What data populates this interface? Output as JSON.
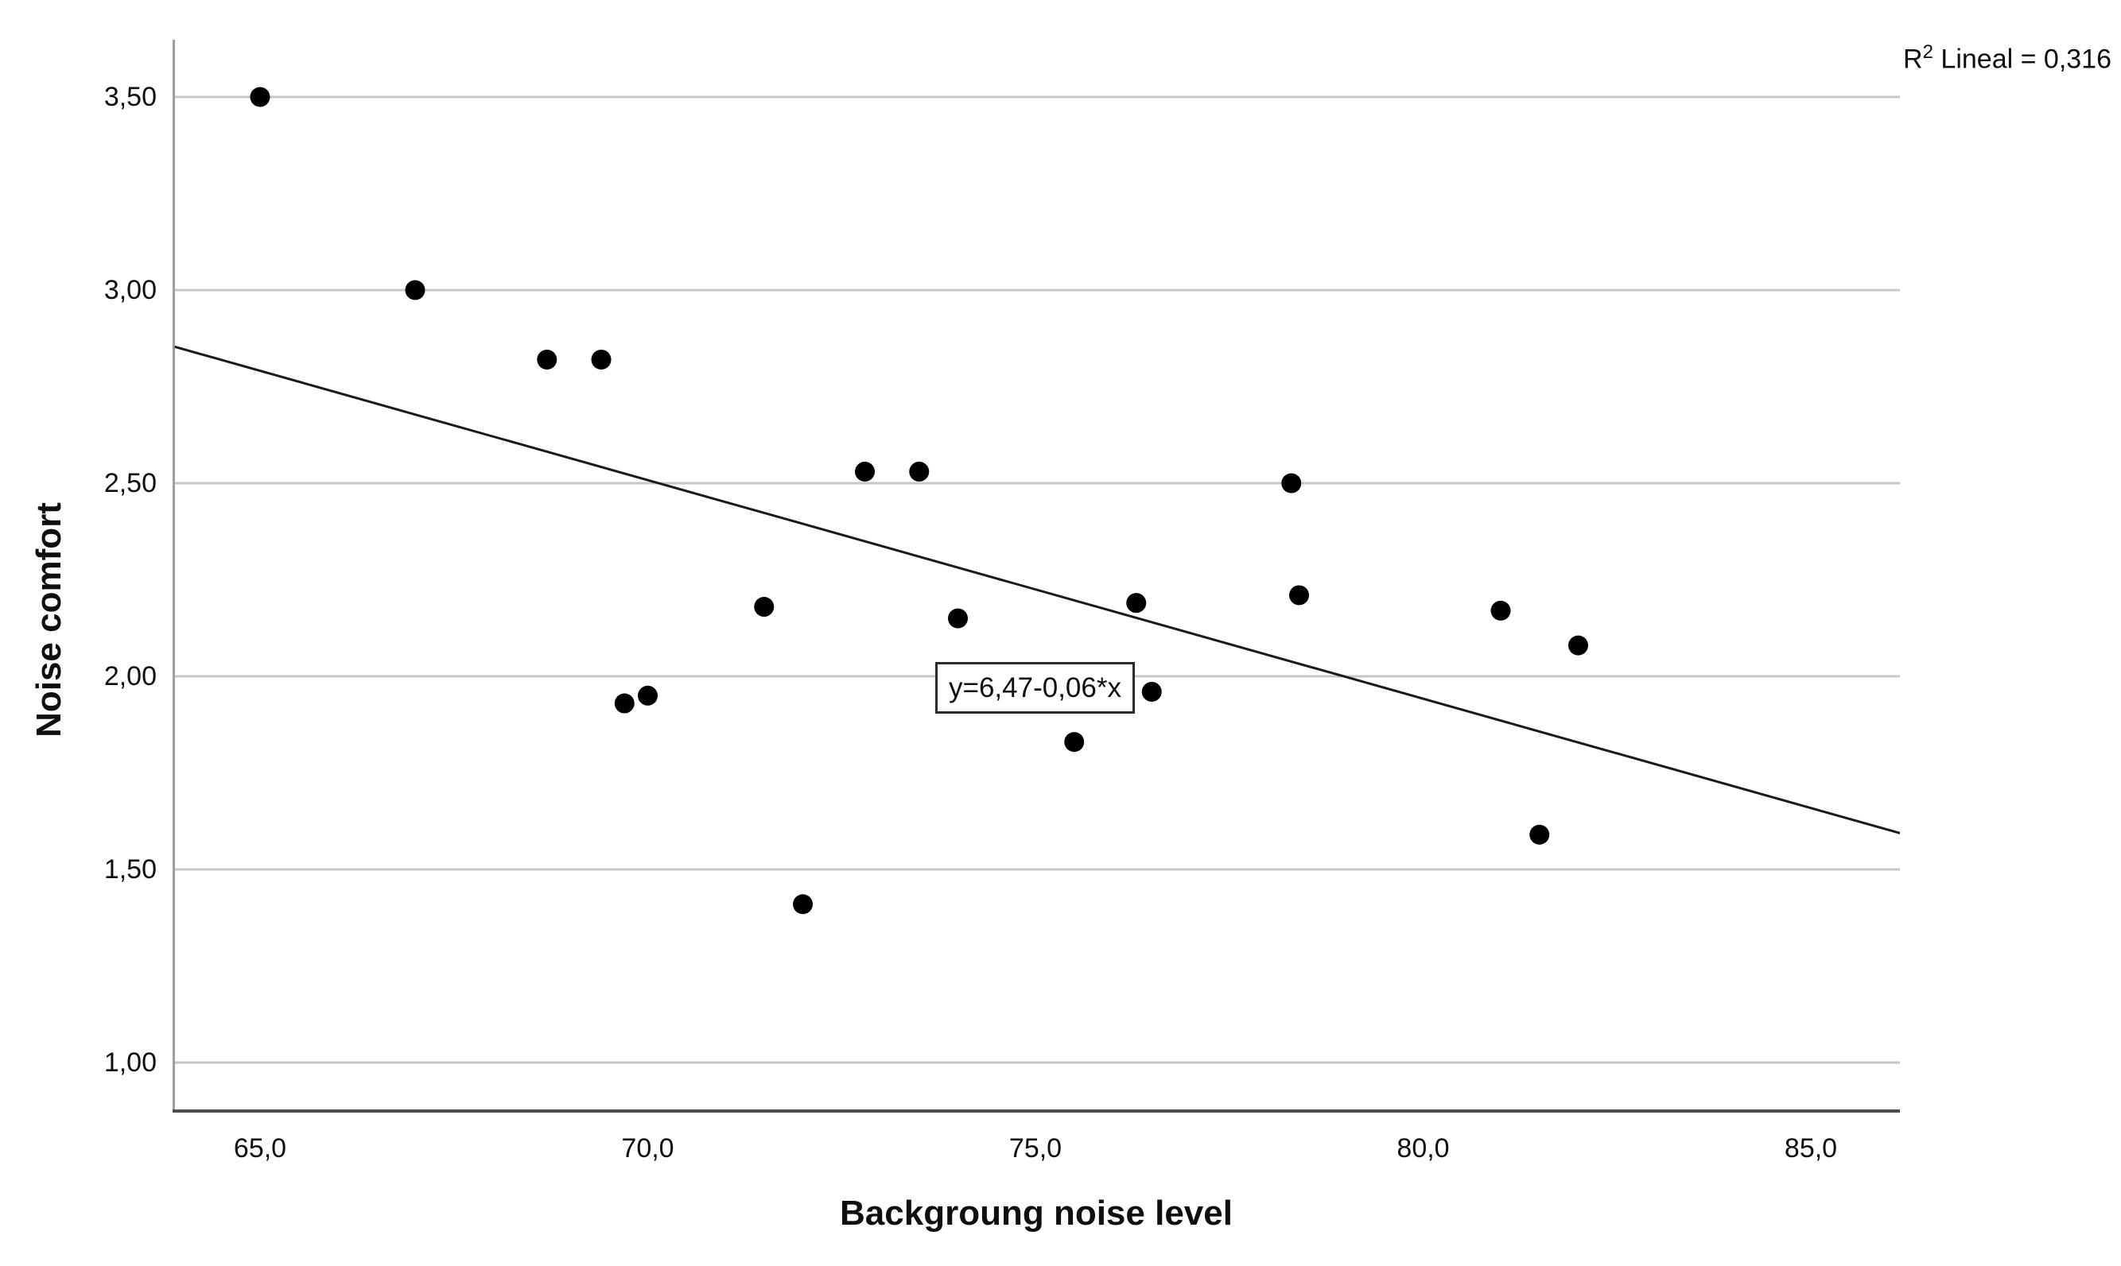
{
  "figure": {
    "r2_label": {
      "prefix": "R",
      "sup": "2",
      "rest": " Lineal = 0,316"
    },
    "annotation_equation": "y=6,47-0,06*x",
    "x_axis_title": "Backgroung noise level",
    "y_axis_title": "Noise comfort"
  },
  "colors": {
    "point": "#000000",
    "regression_line": "#1a1a1a",
    "grid": "#c6c6c6",
    "left_axis": "#9e9e9e",
    "bottom_axis": "#4d4d4d",
    "text": "#0f0f0f"
  },
  "chart_data": {
    "type": "scatter",
    "title": "",
    "xlabel": "Backgroung noise level",
    "ylabel": "Noise comfort",
    "xlim": [
      63.9,
      86.2
    ],
    "ylim": [
      0.87,
      3.67
    ],
    "grid": "horizontal-only",
    "legend": "none",
    "x_ticks": [
      {
        "v": 65,
        "label": "65,0"
      },
      {
        "v": 70,
        "label": "70,0"
      },
      {
        "v": 75,
        "label": "75,0"
      },
      {
        "v": 80,
        "label": "80,0"
      },
      {
        "v": 85,
        "label": "85,0"
      }
    ],
    "y_ticks": [
      {
        "v": 3.5,
        "label": "3,50"
      },
      {
        "v": 3.0,
        "label": "3,00"
      },
      {
        "v": 2.5,
        "label": "2,50"
      },
      {
        "v": 2.0,
        "label": "2,00"
      },
      {
        "v": 1.5,
        "label": "1,50"
      },
      {
        "v": 1.0,
        "label": "1,00"
      }
    ],
    "points": [
      [
        65.0,
        3.5
      ],
      [
        67.0,
        3.0
      ],
      [
        68.7,
        2.82
      ],
      [
        69.4,
        2.82
      ],
      [
        72.8,
        2.53
      ],
      [
        73.5,
        2.53
      ],
      [
        78.3,
        2.5
      ],
      [
        71.5,
        2.18
      ],
      [
        74.0,
        2.15
      ],
      [
        76.3,
        2.19
      ],
      [
        78.4,
        2.21
      ],
      [
        81.0,
        2.17
      ],
      [
        82.0,
        2.08
      ],
      [
        69.7,
        1.93
      ],
      [
        70.0,
        1.95
      ],
      [
        76.5,
        1.96
      ],
      [
        75.5,
        1.83
      ],
      [
        81.5,
        1.59
      ],
      [
        72.0,
        1.41
      ]
    ],
    "regression": {
      "equation_label": "y=6,47-0,06*x",
      "r_squared": 0.316,
      "intercept": 6.47,
      "slope": -0.0566,
      "x_start": 63.9,
      "x_end": 86.15
    }
  }
}
